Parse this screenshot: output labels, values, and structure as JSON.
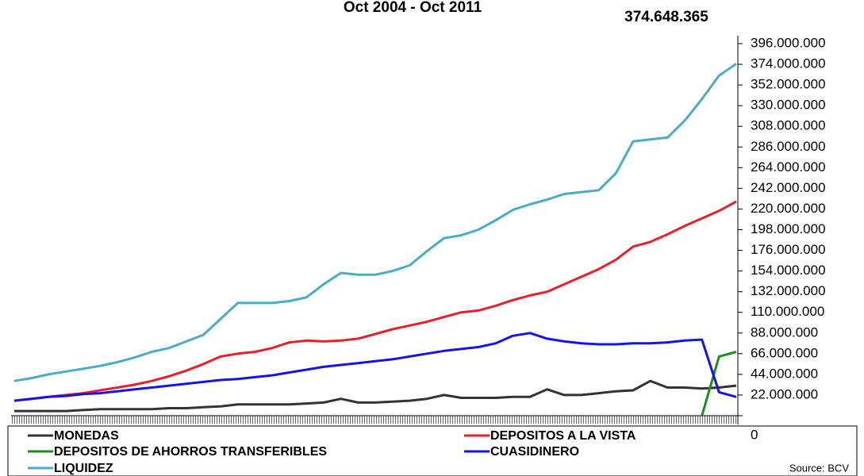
{
  "chart_data": {
    "type": "line",
    "title": "Oct 2004 - Oct 2011",
    "annotations": [
      "374.648.365"
    ],
    "source": "Source: BCV",
    "ylim": [
      0,
      396000000
    ],
    "yticks": [
      0,
      {
        "value": 22000000,
        "label": "22.000.000"
      },
      {
        "value": 44000000,
        "label": "44.000.000"
      },
      {
        "value": 66000000,
        "label": "66.000.000"
      },
      {
        "value": 88000000,
        "label": "88.000.000"
      },
      {
        "value": 110000000,
        "label": "110.000.000"
      },
      {
        "value": 132000000,
        "label": "132.000.000"
      },
      {
        "value": 154000000,
        "label": "154.000.000"
      },
      {
        "value": 176000000,
        "label": "176.000.000"
      },
      {
        "value": 198000000,
        "label": "198.000.000"
      },
      {
        "value": 220000000,
        "label": "220.000.000"
      },
      {
        "value": 242000000,
        "label": "242.000.000"
      },
      {
        "value": 264000000,
        "label": "264.000.000"
      },
      {
        "value": 286000000,
        "label": "286.000.000"
      },
      {
        "value": 308000000,
        "label": "308.000.000"
      },
      {
        "value": 330000000,
        "label": "330.000.000"
      },
      {
        "value": 352000000,
        "label": "352.000.000"
      },
      {
        "value": 374000000,
        "label": "374.000.000"
      },
      {
        "value": 396000000,
        "label": "396.000.000"
      }
    ],
    "series": [
      {
        "name": "MONEDAS",
        "color": "#333333",
        "values": [
          5000000,
          5000000,
          5000000,
          5000000,
          6000000,
          7000000,
          7000000,
          7000000,
          7000000,
          8000000,
          8000000,
          9000000,
          10000000,
          12000000,
          12000000,
          12000000,
          12000000,
          13000000,
          14000000,
          18000000,
          14000000,
          14000000,
          15000000,
          16000000,
          18000000,
          22000000,
          19000000,
          19000000,
          19000000,
          20000000,
          20000000,
          28000000,
          22000000,
          22000000,
          24000000,
          26000000,
          27000000,
          37000000,
          30000000,
          30000000,
          29000000,
          30000000,
          32000000
        ]
      },
      {
        "name": "DEPOSITOS A LA VISTA",
        "color": "#e8202a",
        "values": [
          16000000,
          18000000,
          20000000,
          22000000,
          24000000,
          27000000,
          30000000,
          33000000,
          37000000,
          42000000,
          48000000,
          55000000,
          63000000,
          66000000,
          68000000,
          72000000,
          78000000,
          80000000,
          79000000,
          80000000,
          82000000,
          87000000,
          92000000,
          96000000,
          100000000,
          105000000,
          110000000,
          112000000,
          117000000,
          123000000,
          128000000,
          132000000,
          140000000,
          148000000,
          156000000,
          166000000,
          180000000,
          185000000,
          193000000,
          202000000,
          210000000,
          218000000,
          228000000
        ]
      },
      {
        "name": "DEPOSITOS DE AHORROS TRANSFERIBLES",
        "color": "#1e8c1e",
        "values": [
          null,
          null,
          null,
          null,
          null,
          null,
          null,
          null,
          null,
          null,
          null,
          null,
          null,
          null,
          null,
          null,
          null,
          null,
          null,
          null,
          null,
          null,
          null,
          null,
          null,
          null,
          null,
          null,
          null,
          null,
          null,
          null,
          null,
          null,
          null,
          null,
          null,
          null,
          null,
          null,
          0,
          63000000,
          68000000
        ]
      },
      {
        "name": "CUASIDINERO",
        "color": "#1414e6",
        "values": [
          16000000,
          18000000,
          20000000,
          21000000,
          23000000,
          24000000,
          26000000,
          28000000,
          30000000,
          32000000,
          34000000,
          36000000,
          38000000,
          39000000,
          41000000,
          43000000,
          46000000,
          49000000,
          52000000,
          54000000,
          56000000,
          58000000,
          60000000,
          63000000,
          66000000,
          69000000,
          71000000,
          73000000,
          77000000,
          85000000,
          88000000,
          82000000,
          79000000,
          77000000,
          76000000,
          76000000,
          77000000,
          77000000,
          78000000,
          80000000,
          81000000,
          25000000,
          20000000
        ]
      },
      {
        "name": "LIQUIDEZ",
        "color": "#4bacc6",
        "values": [
          37000000,
          40000000,
          44000000,
          47000000,
          50000000,
          53000000,
          57000000,
          62000000,
          68000000,
          72000000,
          79000000,
          86000000,
          103000000,
          120000000,
          120000000,
          120000000,
          122000000,
          126000000,
          140000000,
          152000000,
          150000000,
          150000000,
          154000000,
          160000000,
          175000000,
          189000000,
          192000000,
          198000000,
          208000000,
          219000000,
          225000000,
          230000000,
          236000000,
          238000000,
          240000000,
          258000000,
          292000000,
          294000000,
          296000000,
          314000000,
          337000000,
          362000000,
          374648365
        ]
      }
    ]
  }
}
